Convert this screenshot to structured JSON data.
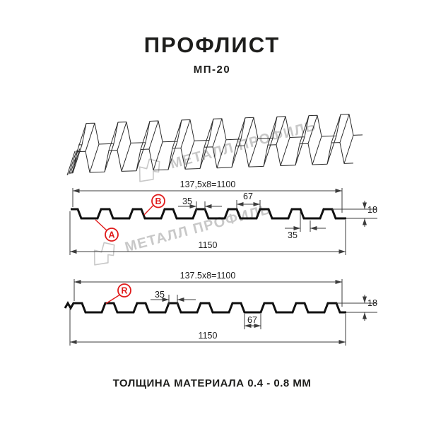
{
  "title": "ПРОФЛИСТ",
  "subtitle": "МП-20",
  "footer": "ТОЛЩИНА МАТЕРИАЛА 0.4 - 0.8 ММ",
  "watermark": {
    "text": "МЕТАЛЛ ПРОФИЛЬ"
  },
  "colors": {
    "accent_red": "#e01b1b",
    "drawing_line": "#111111",
    "dimension_line": "#3c3c3c",
    "watermark_gray": "#c8c8c8"
  },
  "sections": {
    "top": {
      "formula": "137,5x8=1100",
      "rib_top_width": "35",
      "valley_span": "67",
      "height": "18",
      "rib_bottom_width": "35",
      "total_width": "1150",
      "label_a": "A",
      "label_b": "B"
    },
    "bottom": {
      "formula": "137.5x8=1100",
      "rib_top_width": "35",
      "valley_span": "67",
      "height": "18",
      "total_width": "1150",
      "label_r": "R"
    }
  }
}
